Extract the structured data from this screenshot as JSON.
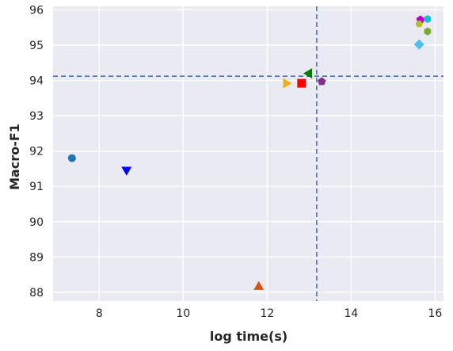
{
  "chart_data": {
    "type": "scatter",
    "title": "",
    "xlabel": "log time(s)",
    "ylabel": "Macro-F1",
    "xlim": [
      6.9,
      16.2
    ],
    "ylim": [
      87.75,
      96.1
    ],
    "xticks": [
      8,
      10,
      12,
      14,
      16
    ],
    "yticks": [
      88,
      89,
      90,
      91,
      92,
      93,
      94,
      95,
      96
    ],
    "grid": true,
    "background": "#eaeaf2",
    "reference_lines": [
      {
        "orientation": "horizontal",
        "value": 94.12,
        "color": "#4c72b0",
        "style": "dashed"
      },
      {
        "orientation": "vertical",
        "value": 13.18,
        "color": "#4c72b0",
        "style": "dashed"
      }
    ],
    "points": [
      {
        "x": 7.35,
        "y": 91.8,
        "marker": "circle",
        "color": "#1f77b4"
      },
      {
        "x": 8.65,
        "y": 91.47,
        "marker": "triangle-down",
        "color": "#0000ff"
      },
      {
        "x": 11.8,
        "y": 88.15,
        "marker": "triangle-up",
        "color": "#d95319"
      },
      {
        "x": 12.45,
        "y": 93.92,
        "marker": "triangle-right",
        "color": "#edb120"
      },
      {
        "x": 12.82,
        "y": 93.92,
        "marker": "square",
        "color": "#ff0000"
      },
      {
        "x": 13.0,
        "y": 94.2,
        "marker": "triangle-left",
        "color": "#008000"
      },
      {
        "x": 13.3,
        "y": 93.97,
        "marker": "pentagon",
        "color": "#7e2f8e"
      },
      {
        "x": 15.62,
        "y": 95.02,
        "marker": "diamond",
        "color": "#4dbeee"
      },
      {
        "x": 15.65,
        "y": 95.72,
        "marker": "pentagon",
        "color": "#c000c0"
      },
      {
        "x": 15.62,
        "y": 95.6,
        "marker": "octagon",
        "color": "#bcbd22"
      },
      {
        "x": 15.82,
        "y": 95.39,
        "marker": "hexagon",
        "color": "#77ac30"
      },
      {
        "x": 15.82,
        "y": 95.74,
        "marker": "hexagon",
        "color": "#17becf"
      }
    ]
  }
}
